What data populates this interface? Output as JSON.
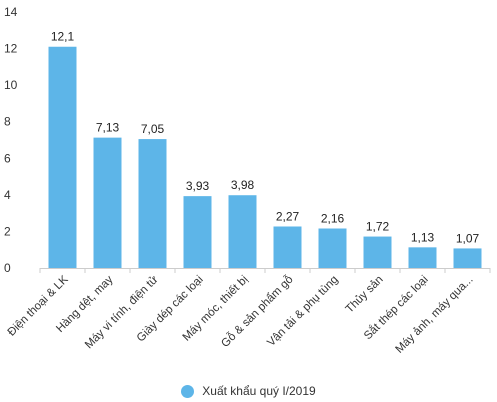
{
  "chart_data": {
    "type": "bar",
    "categories": [
      "Điện thoại & LK",
      "Hàng dệt, may",
      "Máy vi tính, điện tử",
      "Giày dép các loại",
      "Máy móc, thiết bị",
      "Gỗ & sản phẩm gỗ",
      "Vận tải & phụ tùng",
      "Thủy sản",
      "Sắt thép các loại",
      "Máy ảnh, máy qua..."
    ],
    "series": [
      {
        "name": "Xuất khẩu quý I/2019",
        "values": [
          12.1,
          7.13,
          7.05,
          3.93,
          3.98,
          2.27,
          2.16,
          1.72,
          1.13,
          1.07
        ],
        "labels": [
          "12,1",
          "7,13",
          "7,05",
          "3,93",
          "3,98",
          "2,27",
          "2,16",
          "1,72",
          "1,13",
          "1,07"
        ]
      }
    ],
    "yticks": [
      "0",
      "2",
      "4",
      "6",
      "8",
      "10",
      "12",
      "14"
    ],
    "ylim": [
      0,
      14
    ],
    "grid": false,
    "legend_position": "bottom-center",
    "bar_color": "#5db5e8"
  }
}
